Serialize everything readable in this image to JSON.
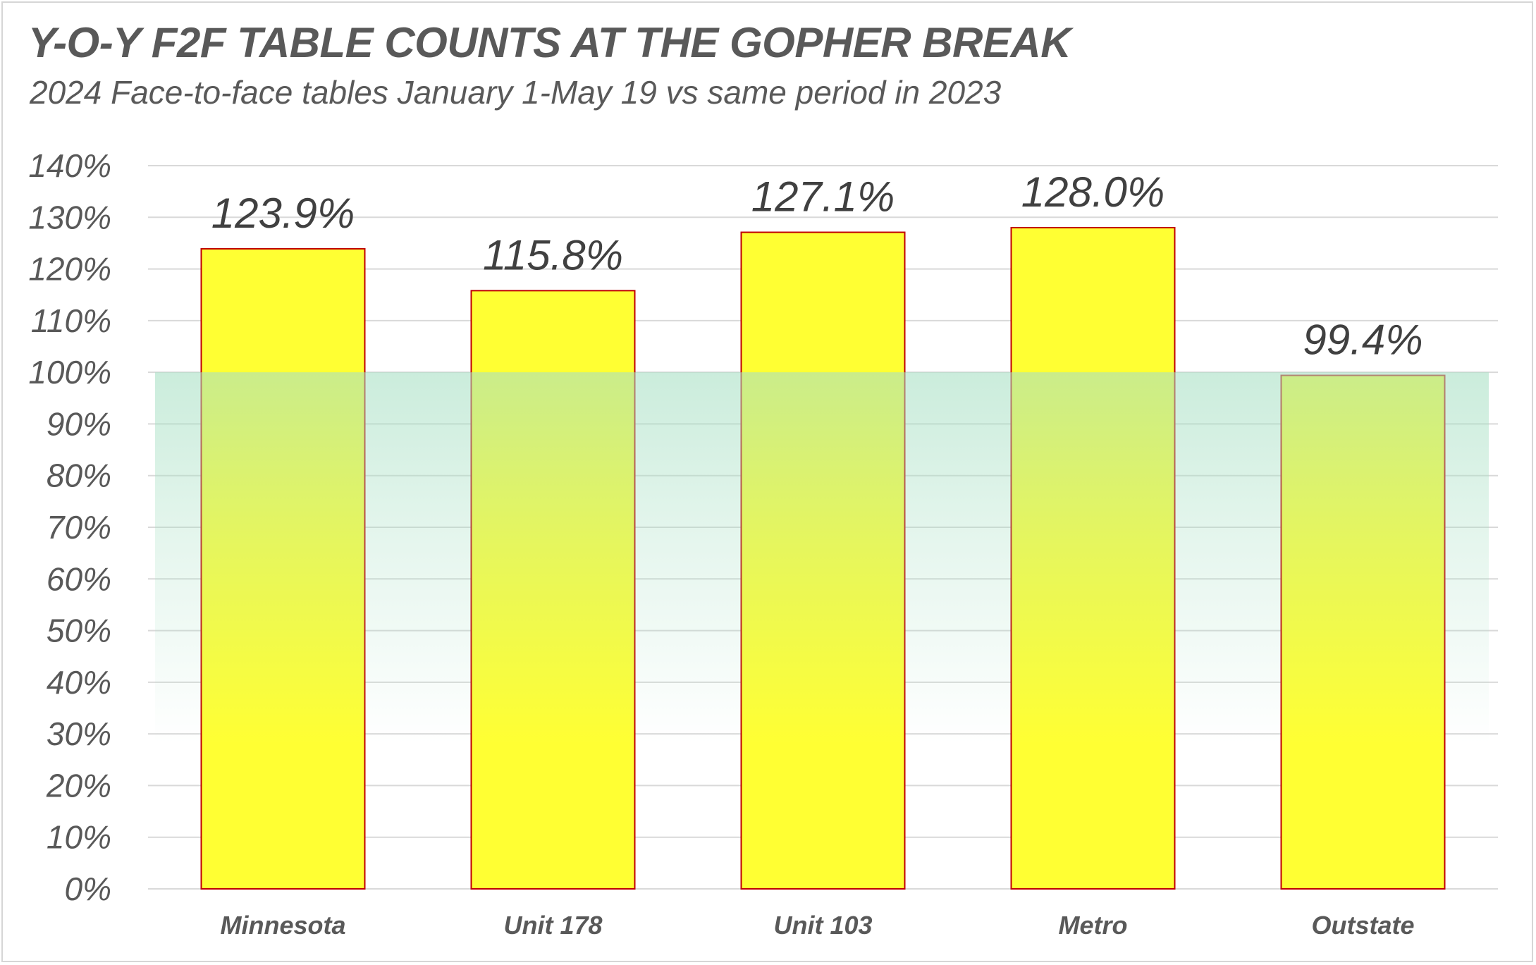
{
  "chart_data": {
    "type": "bar",
    "title": "Y-O-Y F2F TABLE COUNTS AT THE GOPHER BREAK",
    "subtitle": "2024 Face-to-face tables January 1-May 19 vs same period in 2023",
    "xlabel": "",
    "ylabel": "",
    "categories": [
      "Minnesota",
      "Unit 178",
      "Unit 103",
      "Metro",
      "Outstate"
    ],
    "values": [
      123.9,
      115.8,
      127.1,
      128.0,
      99.4
    ],
    "data_labels": [
      "123.9%",
      "115.8%",
      "127.1%",
      "128.0%",
      "99.4%"
    ],
    "ylim": [
      0,
      140
    ],
    "yticks": [
      0,
      10,
      20,
      30,
      40,
      50,
      60,
      70,
      80,
      90,
      100,
      110,
      120,
      130,
      140
    ],
    "ytick_labels": [
      "0%",
      "10%",
      "20%",
      "30%",
      "40%",
      "50%",
      "60%",
      "70%",
      "80%",
      "90%",
      "100%",
      "110%",
      "120%",
      "130%",
      "140%"
    ],
    "grid": true,
    "legend": "none",
    "reference_band": {
      "from": 0,
      "to": 100,
      "color": "#a8e0c4"
    },
    "colors": {
      "bar_fill": "#ffff33",
      "bar_stroke": "#c00000",
      "grid": "#d9d9d9",
      "text": "#595959"
    }
  }
}
